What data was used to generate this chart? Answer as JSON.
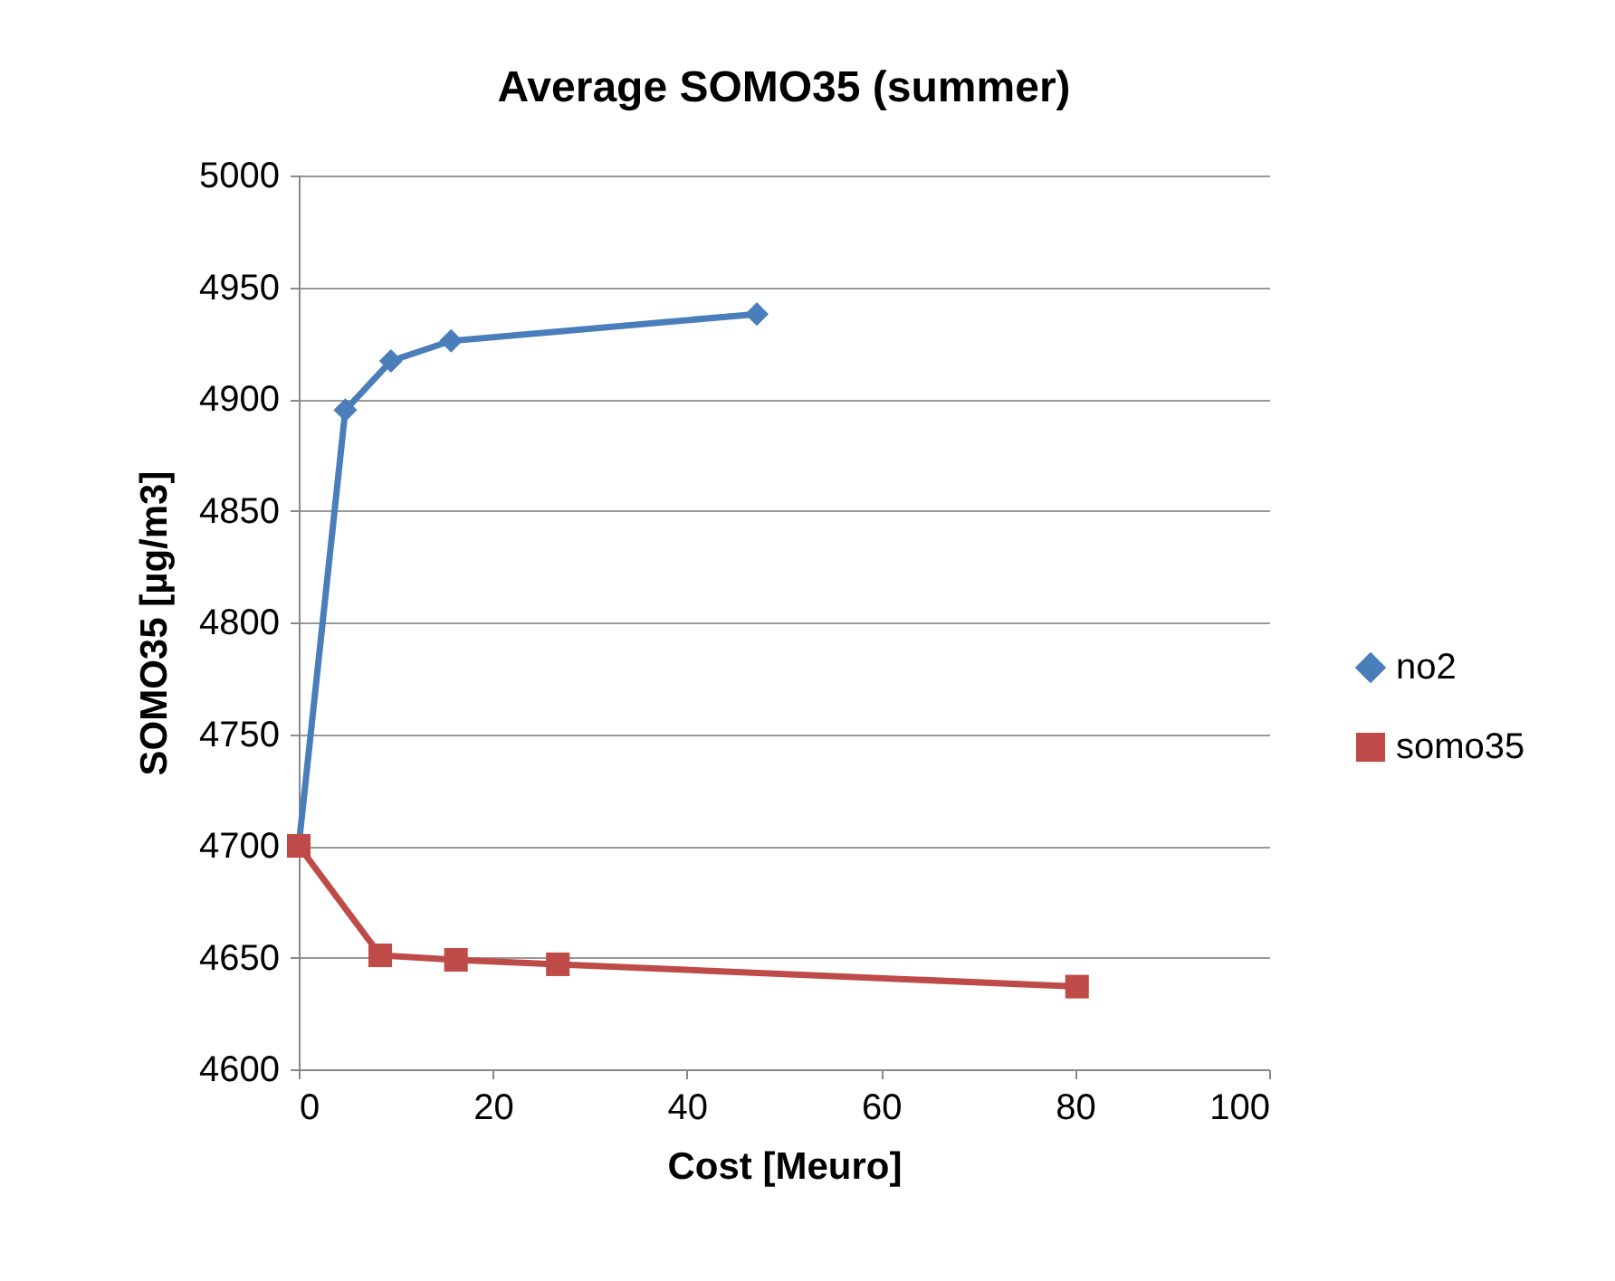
{
  "chart_data": {
    "type": "line",
    "title": "Average SOMO35 (summer)",
    "xlabel": "Cost [Meuro]",
    "ylabel": "SOMO35 [µg/m3]",
    "xlim": [
      0,
      100
    ],
    "xticks": [
      0,
      20,
      40,
      60,
      80,
      100
    ],
    "ylim": [
      4600,
      5000
    ],
    "yticks": [
      4600,
      4650,
      4700,
      4750,
      4800,
      4850,
      4900,
      4950,
      5000
    ],
    "grid": "y",
    "legend": "right",
    "series": [
      {
        "name": "no2",
        "color": "#4a7ebb",
        "marker": "diamond",
        "x": [
          0,
          4.8,
          9.5,
          15.7,
          47.2
        ],
        "values": [
          4700,
          4895,
          4917,
          4926,
          4938
        ]
      },
      {
        "name": "somo35",
        "color": "#be4b48",
        "marker": "square",
        "x": [
          0,
          8.4,
          16.2,
          26.7,
          80.2
        ],
        "values": [
          4700,
          4651,
          4649,
          4647,
          4637
        ]
      }
    ]
  }
}
